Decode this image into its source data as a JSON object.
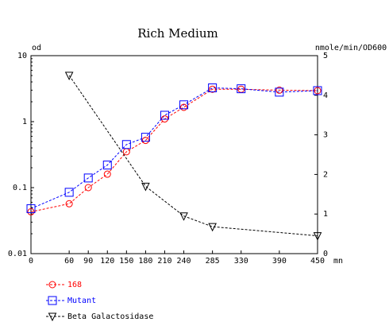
{
  "chart_data": {
    "type": "line",
    "title": "Rich Medium",
    "ylabel_left": "od",
    "ylabel_right": "nmole/min/OD600",
    "xlabel": "mn",
    "x_ticks": [
      0,
      60,
      90,
      120,
      150,
      180,
      210,
      240,
      285,
      330,
      390,
      450
    ],
    "xlim": [
      0,
      450
    ],
    "y_left": {
      "scale": "log",
      "ylim": [
        0.01,
        10
      ],
      "tick_labels": [
        "0.01",
        "0.1",
        "1",
        "10"
      ],
      "tick_values": [
        0.01,
        0.1,
        1,
        10
      ]
    },
    "y_right": {
      "scale": "linear",
      "ylim": [
        0,
        5
      ],
      "tick_labels": [
        "0",
        "1",
        "2",
        "3",
        "4",
        "5"
      ],
      "tick_values": [
        0,
        1,
        2,
        3,
        4,
        5
      ]
    },
    "grid": false,
    "legend_position": "bottom-left",
    "series": [
      {
        "name": "168",
        "axis": "left",
        "marker": "circle",
        "color": "#ff0000",
        "x": [
          0,
          60,
          90,
          120,
          150,
          180,
          210,
          240,
          285,
          330,
          390,
          450
        ],
        "y": [
          0.043,
          0.057,
          0.1,
          0.16,
          0.35,
          0.52,
          1.1,
          1.65,
          3.1,
          3.1,
          3.0,
          2.95
        ]
      },
      {
        "name": "Mutant",
        "axis": "left",
        "marker": "square",
        "color": "#0000ff",
        "x": [
          0,
          60,
          90,
          120,
          150,
          180,
          210,
          240,
          285,
          330,
          390,
          450
        ],
        "y": [
          0.048,
          0.085,
          0.14,
          0.22,
          0.45,
          0.58,
          1.25,
          1.8,
          3.25,
          3.15,
          2.8,
          2.95
        ]
      },
      {
        "name": "Beta Galactosidase",
        "axis": "right",
        "marker": "triangle-down",
        "color": "#000000",
        "x": [
          60,
          180,
          240,
          285,
          450
        ],
        "y": [
          4.5,
          1.7,
          0.95,
          0.68,
          0.45
        ]
      }
    ]
  }
}
